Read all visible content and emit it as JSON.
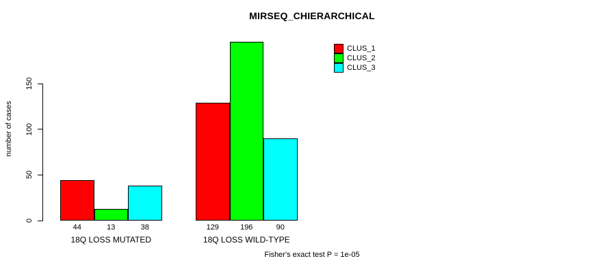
{
  "title": "MIRSEQ_CHIERARCHICAL",
  "footnote": "Fisher's exact test P = 1e-05",
  "chart_data": {
    "type": "bar",
    "title": "MIRSEQ_CHIERARCHICAL",
    "xlabel": "",
    "ylabel": "number of cases",
    "categories": [
      "18Q LOSS MUTATED",
      "18Q LOSS WILD-TYPE"
    ],
    "series": [
      {
        "name": "CLUS_1",
        "color": "#FF0000",
        "values": [
          44,
          129
        ]
      },
      {
        "name": "CLUS_2",
        "color": "#00FF00",
        "values": [
          13,
          196
        ]
      },
      {
        "name": "CLUS_3",
        "color": "#00FFFF",
        "values": [
          38,
          90
        ]
      }
    ],
    "yticks": [
      0,
      50,
      100,
      150
    ],
    "ylim": [
      0,
      150
    ],
    "grid": false,
    "legend_position": "top-right",
    "bar_borders": "#000000",
    "annotation": "Fisher's exact test P = 1e-05"
  }
}
